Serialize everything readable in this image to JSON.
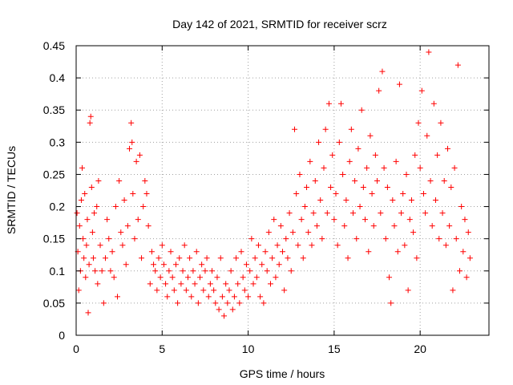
{
  "chart_data": {
    "type": "scatter",
    "title": "Day 142 of 2021, SRMTID for receiver scrz",
    "xlabel": "GPS time / hours",
    "ylabel": "SRMTID / TECUs",
    "xlim": [
      0,
      24
    ],
    "ylim": [
      0,
      0.45
    ],
    "xticks": [
      0,
      5,
      10,
      15,
      20
    ],
    "xtick_labels": [
      "0",
      "5",
      "10",
      "15",
      "20"
    ],
    "yticks": [
      0,
      0.05,
      0.1,
      0.15,
      0.2,
      0.25,
      0.3,
      0.35,
      0.4,
      0.45
    ],
    "ytick_labels": [
      "0",
      "0.05",
      "0.1",
      "0.15",
      "0.2",
      "0.25",
      "0.3",
      "0.35",
      "0.4",
      "0.45"
    ],
    "grid": true,
    "marker": "+",
    "color": "#ff0000",
    "series": [
      {
        "name": "SRMTID",
        "points": [
          [
            0.05,
            0.19
          ],
          [
            0.1,
            0.13
          ],
          [
            0.15,
            0.07
          ],
          [
            0.2,
            0.17
          ],
          [
            0.25,
            0.1
          ],
          [
            0.3,
            0.21
          ],
          [
            0.35,
            0.26
          ],
          [
            0.4,
            0.15
          ],
          [
            0.45,
            0.12
          ],
          [
            0.5,
            0.22
          ],
          [
            0.55,
            0.09
          ],
          [
            0.6,
            0.14
          ],
          [
            0.65,
            0.18
          ],
          [
            0.7,
            0.035
          ],
          [
            0.75,
            0.11
          ],
          [
            0.8,
            0.33
          ],
          [
            0.85,
            0.34
          ],
          [
            0.9,
            0.23
          ],
          [
            0.95,
            0.16
          ],
          [
            1.0,
            0.12
          ],
          [
            1.05,
            0.19
          ],
          [
            1.1,
            0.1
          ],
          [
            1.2,
            0.2
          ],
          [
            1.25,
            0.08
          ],
          [
            1.3,
            0.24
          ],
          [
            1.4,
            0.14
          ],
          [
            1.5,
            0.1
          ],
          [
            1.6,
            0.05
          ],
          [
            1.7,
            0.12
          ],
          [
            1.8,
            0.18
          ],
          [
            1.9,
            0.15
          ],
          [
            2.0,
            0.1
          ],
          [
            2.1,
            0.13
          ],
          [
            2.2,
            0.09
          ],
          [
            2.3,
            0.2
          ],
          [
            2.4,
            0.06
          ],
          [
            2.5,
            0.24
          ],
          [
            2.6,
            0.16
          ],
          [
            2.7,
            0.14
          ],
          [
            2.8,
            0.21
          ],
          [
            2.9,
            0.11
          ],
          [
            3.0,
            0.17
          ],
          [
            3.1,
            0.29
          ],
          [
            3.2,
            0.33
          ],
          [
            3.25,
            0.3
          ],
          [
            3.3,
            0.22
          ],
          [
            3.4,
            0.15
          ],
          [
            3.5,
            0.27
          ],
          [
            3.6,
            0.18
          ],
          [
            3.7,
            0.28
          ],
          [
            3.8,
            0.12
          ],
          [
            3.9,
            0.2
          ],
          [
            4.0,
            0.24
          ],
          [
            4.1,
            0.22
          ],
          [
            4.2,
            0.17
          ],
          [
            4.3,
            0.08
          ],
          [
            4.4,
            0.13
          ],
          [
            4.5,
            0.11
          ],
          [
            4.6,
            0.1
          ],
          [
            4.7,
            0.07
          ],
          [
            4.8,
            0.12
          ],
          [
            4.9,
            0.09
          ],
          [
            5.0,
            0.14
          ],
          [
            5.1,
            0.11
          ],
          [
            5.2,
            0.08
          ],
          [
            5.3,
            0.06
          ],
          [
            5.4,
            0.1
          ],
          [
            5.5,
            0.13
          ],
          [
            5.6,
            0.09
          ],
          [
            5.7,
            0.07
          ],
          [
            5.8,
            0.11
          ],
          [
            5.9,
            0.05
          ],
          [
            6.0,
            0.12
          ],
          [
            6.1,
            0.08
          ],
          [
            6.2,
            0.1
          ],
          [
            6.3,
            0.14
          ],
          [
            6.4,
            0.07
          ],
          [
            6.5,
            0.09
          ],
          [
            6.6,
            0.12
          ],
          [
            6.7,
            0.06
          ],
          [
            6.8,
            0.1
          ],
          [
            6.9,
            0.08
          ],
          [
            7.0,
            0.13
          ],
          [
            7.1,
            0.05
          ],
          [
            7.2,
            0.09
          ],
          [
            7.3,
            0.11
          ],
          [
            7.4,
            0.07
          ],
          [
            7.5,
            0.1
          ],
          [
            7.6,
            0.12
          ],
          [
            7.7,
            0.06
          ],
          [
            7.8,
            0.08
          ],
          [
            7.9,
            0.1
          ],
          [
            8.0,
            0.07
          ],
          [
            8.1,
            0.05
          ],
          [
            8.2,
            0.09
          ],
          [
            8.3,
            0.04
          ],
          [
            8.4,
            0.12
          ],
          [
            8.5,
            0.06
          ],
          [
            8.6,
            0.03
          ],
          [
            8.7,
            0.08
          ],
          [
            8.8,
            0.05
          ],
          [
            8.9,
            0.07
          ],
          [
            9.0,
            0.1
          ],
          [
            9.1,
            0.04
          ],
          [
            9.2,
            0.06
          ],
          [
            9.3,
            0.12
          ],
          [
            9.4,
            0.08
          ],
          [
            9.5,
            0.05
          ],
          [
            9.6,
            0.13
          ],
          [
            9.7,
            0.09
          ],
          [
            9.8,
            0.07
          ],
          [
            9.9,
            0.11
          ],
          [
            10.0,
            0.06
          ],
          [
            10.1,
            0.1
          ],
          [
            10.2,
            0.15
          ],
          [
            10.3,
            0.08
          ],
          [
            10.4,
            0.12
          ],
          [
            10.5,
            0.09
          ],
          [
            10.6,
            0.14
          ],
          [
            10.7,
            0.06
          ],
          [
            10.8,
            0.11
          ],
          [
            10.9,
            0.05
          ],
          [
            11.0,
            0.13
          ],
          [
            11.1,
            0.1
          ],
          [
            11.2,
            0.16
          ],
          [
            11.3,
            0.08
          ],
          [
            11.4,
            0.12
          ],
          [
            11.5,
            0.18
          ],
          [
            11.6,
            0.09
          ],
          [
            11.7,
            0.14
          ],
          [
            11.8,
            0.11
          ],
          [
            11.9,
            0.17
          ],
          [
            12.0,
            0.13
          ],
          [
            12.1,
            0.07
          ],
          [
            12.2,
            0.15
          ],
          [
            12.3,
            0.12
          ],
          [
            12.4,
            0.19
          ],
          [
            12.5,
            0.1
          ],
          [
            12.6,
            0.16
          ],
          [
            12.7,
            0.32
          ],
          [
            12.8,
            0.22
          ],
          [
            12.9,
            0.14
          ],
          [
            13.0,
            0.25
          ],
          [
            13.1,
            0.18
          ],
          [
            13.2,
            0.12
          ],
          [
            13.3,
            0.2
          ],
          [
            13.4,
            0.23
          ],
          [
            13.5,
            0.16
          ],
          [
            13.6,
            0.27
          ],
          [
            13.7,
            0.14
          ],
          [
            13.8,
            0.19
          ],
          [
            13.9,
            0.24
          ],
          [
            14.0,
            0.17
          ],
          [
            14.1,
            0.3
          ],
          [
            14.2,
            0.21
          ],
          [
            14.3,
            0.15
          ],
          [
            14.4,
            0.26
          ],
          [
            14.5,
            0.32
          ],
          [
            14.6,
            0.19
          ],
          [
            14.7,
            0.36
          ],
          [
            14.8,
            0.23
          ],
          [
            14.9,
            0.28
          ],
          [
            15.0,
            0.18
          ],
          [
            15.1,
            0.22
          ],
          [
            15.2,
            0.14
          ],
          [
            15.3,
            0.3
          ],
          [
            15.4,
            0.36
          ],
          [
            15.5,
            0.25
          ],
          [
            15.6,
            0.17
          ],
          [
            15.7,
            0.21
          ],
          [
            15.8,
            0.12
          ],
          [
            15.9,
            0.27
          ],
          [
            16.0,
            0.32
          ],
          [
            16.1,
            0.19
          ],
          [
            16.2,
            0.24
          ],
          [
            16.3,
            0.15
          ],
          [
            16.4,
            0.29
          ],
          [
            16.5,
            0.2
          ],
          [
            16.6,
            0.35
          ],
          [
            16.7,
            0.23
          ],
          [
            16.8,
            0.18
          ],
          [
            16.9,
            0.26
          ],
          [
            17.0,
            0.13
          ],
          [
            17.1,
            0.31
          ],
          [
            17.2,
            0.22
          ],
          [
            17.3,
            0.17
          ],
          [
            17.4,
            0.28
          ],
          [
            17.5,
            0.24
          ],
          [
            17.6,
            0.38
          ],
          [
            17.7,
            0.19
          ],
          [
            17.8,
            0.41
          ],
          [
            17.9,
            0.26
          ],
          [
            18.0,
            0.15
          ],
          [
            18.1,
            0.23
          ],
          [
            18.2,
            0.09
          ],
          [
            18.3,
            0.05
          ],
          [
            18.4,
            0.21
          ],
          [
            18.5,
            0.17
          ],
          [
            18.6,
            0.27
          ],
          [
            18.7,
            0.13
          ],
          [
            18.8,
            0.39
          ],
          [
            18.9,
            0.19
          ],
          [
            19.0,
            0.22
          ],
          [
            19.1,
            0.14
          ],
          [
            19.2,
            0.25
          ],
          [
            19.3,
            0.07
          ],
          [
            19.4,
            0.18
          ],
          [
            19.5,
            0.21
          ],
          [
            19.6,
            0.16
          ],
          [
            19.7,
            0.28
          ],
          [
            19.8,
            0.12
          ],
          [
            19.9,
            0.33
          ],
          [
            20.0,
            0.26
          ],
          [
            20.1,
            0.38
          ],
          [
            20.2,
            0.22
          ],
          [
            20.3,
            0.19
          ],
          [
            20.4,
            0.31
          ],
          [
            20.5,
            0.44
          ],
          [
            20.6,
            0.24
          ],
          [
            20.7,
            0.17
          ],
          [
            20.8,
            0.36
          ],
          [
            20.9,
            0.21
          ],
          [
            21.0,
            0.28
          ],
          [
            21.1,
            0.15
          ],
          [
            21.2,
            0.33
          ],
          [
            21.3,
            0.19
          ],
          [
            21.4,
            0.24
          ],
          [
            21.5,
            0.14
          ],
          [
            21.6,
            0.29
          ],
          [
            21.7,
            0.17
          ],
          [
            21.8,
            0.23
          ],
          [
            21.9,
            0.07
          ],
          [
            22.0,
            0.26
          ],
          [
            22.1,
            0.15
          ],
          [
            22.2,
            0.42
          ],
          [
            22.3,
            0.1
          ],
          [
            22.4,
            0.2
          ],
          [
            22.5,
            0.13
          ],
          [
            22.6,
            0.18
          ],
          [
            22.7,
            0.09
          ],
          [
            22.8,
            0.16
          ],
          [
            22.9,
            0.12
          ]
        ]
      }
    ]
  }
}
